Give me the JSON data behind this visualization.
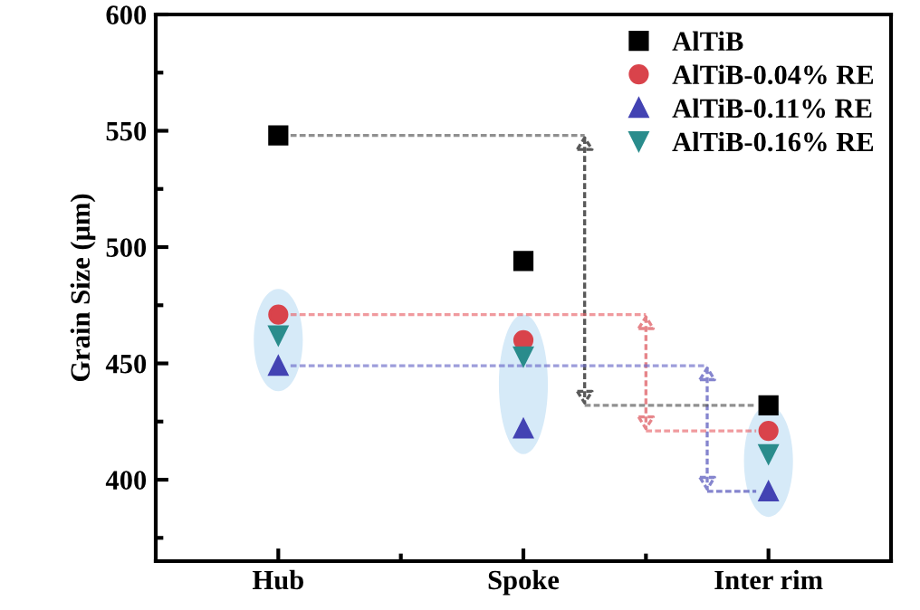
{
  "chart_data": {
    "type": "scatter",
    "ylabel": "Grain Size (μm)",
    "categories": [
      "Hub",
      "Spoke",
      "Inter rim"
    ],
    "series": [
      {
        "name": "AlTiB",
        "color": "#000000",
        "marker": "square",
        "values": [
          548,
          494,
          432
        ]
      },
      {
        "name": "AlTiB-0.04% RE",
        "color": "#d9434b",
        "marker": "circle",
        "values": [
          471,
          460,
          421
        ]
      },
      {
        "name": "AlTiB-0.11% RE",
        "color": "#4343b3",
        "marker": "triangle",
        "values": [
          449,
          422,
          395
        ]
      },
      {
        "name": "AlTiB-0.16% RE",
        "color": "#2a8c8c",
        "marker": "triangle_down",
        "values": [
          462,
          453,
          411
        ]
      }
    ],
    "ref_lines": [
      {
        "axis": "y",
        "value": 548,
        "color": "#555555",
        "line_style": "dashed"
      },
      {
        "axis": "y",
        "value": 432,
        "color": "#555555",
        "line_style": "dashed"
      },
      {
        "axis": "y",
        "value": 471,
        "color": "#e8646a",
        "line_style": "dashed"
      },
      {
        "axis": "y",
        "value": 421,
        "color": "#e8646a",
        "line_style": "dashed"
      },
      {
        "axis": "y",
        "value": 449,
        "color": "#6a6ac8",
        "line_style": "dashed"
      }
    ],
    "ylim": [
      365,
      600
    ],
    "yticks": [
      400,
      450,
      500,
      550,
      600
    ],
    "grid": false,
    "legend": "top right"
  }
}
